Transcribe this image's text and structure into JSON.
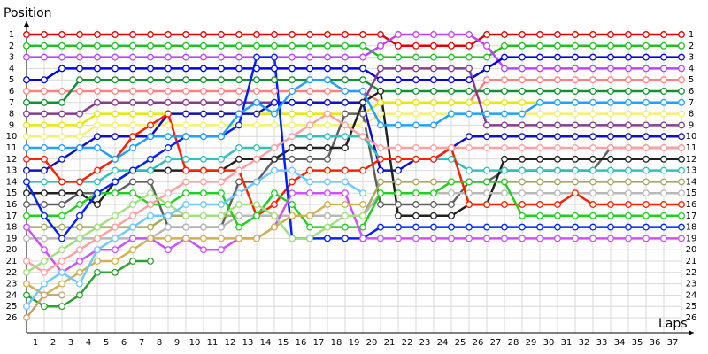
{
  "chart_data": {
    "type": "line",
    "y_title": "Position",
    "x_title": "Laps",
    "x": [
      0,
      1,
      2,
      3,
      4,
      5,
      6,
      7,
      8,
      9,
      10,
      11,
      12,
      13,
      14,
      15,
      16,
      17,
      18,
      19,
      20,
      21,
      22,
      23,
      24,
      25,
      26,
      27,
      28,
      29,
      30,
      31,
      32,
      33,
      34,
      35,
      36,
      37
    ],
    "xlim": [
      0,
      37
    ],
    "xticks": [
      1,
      2,
      3,
      4,
      5,
      6,
      7,
      8,
      9,
      10,
      11,
      12,
      13,
      14,
      15,
      16,
      17,
      18,
      19,
      20,
      21,
      22,
      23,
      24,
      25,
      26,
      27,
      28,
      29,
      30,
      31,
      32,
      33,
      34,
      35,
      36,
      37
    ],
    "ylim": [
      26,
      1
    ],
    "yticks": [
      1,
      2,
      3,
      4,
      5,
      6,
      7,
      8,
      9,
      10,
      11,
      12,
      13,
      14,
      15,
      16,
      17,
      18,
      19,
      20,
      21,
      22,
      23,
      24,
      25,
      26
    ],
    "grid": true,
    "series": [
      {
        "color": "#e00000",
        "values": [
          1,
          1,
          1,
          1,
          1,
          1,
          1,
          1,
          1,
          1,
          1,
          1,
          1,
          1,
          1,
          1,
          1,
          1,
          1,
          1,
          1,
          2,
          2,
          2,
          2,
          2,
          1,
          1,
          1,
          1,
          1,
          1,
          1,
          1,
          1,
          1,
          1,
          1
        ]
      },
      {
        "color": "#20c020",
        "values": [
          2,
          2,
          2,
          2,
          2,
          2,
          2,
          2,
          2,
          2,
          2,
          2,
          2,
          2,
          2,
          2,
          2,
          2,
          2,
          2,
          3,
          3,
          3,
          3,
          3,
          3,
          3,
          2,
          2,
          2,
          2,
          2,
          2,
          2,
          2,
          2,
          2,
          2
        ]
      },
      {
        "color": "#c040ff",
        "values": [
          3,
          3,
          3,
          3,
          3,
          3,
          3,
          3,
          3,
          3,
          3,
          3,
          3,
          3,
          3,
          3,
          3,
          3,
          3,
          3,
          2,
          1,
          1,
          1,
          1,
          1,
          2,
          4,
          4,
          4,
          4,
          4,
          4,
          4,
          4,
          4,
          4,
          4
        ]
      },
      {
        "color": "#0000e0",
        "values": [
          5,
          5,
          4,
          4,
          4,
          4,
          4,
          4,
          4,
          4,
          4,
          4,
          4,
          4,
          4,
          4,
          4,
          4,
          4,
          4,
          5,
          5,
          5,
          5,
          5,
          5,
          4,
          3,
          3,
          3,
          3,
          3,
          3,
          3,
          3,
          3,
          3,
          3
        ]
      },
      {
        "color": "#ff8080",
        "values": [
          6,
          6,
          6,
          6,
          6,
          6,
          6,
          6,
          6,
          6,
          6,
          6,
          6,
          6,
          6,
          6,
          6,
          6,
          6,
          6,
          7,
          7,
          7,
          7,
          7,
          7,
          5,
          5,
          5,
          5,
          5,
          5,
          5,
          5,
          5,
          5,
          5,
          5
        ]
      },
      {
        "color": "#109030",
        "values": [
          7,
          7,
          7,
          5,
          5,
          5,
          5,
          5,
          5,
          5,
          5,
          5,
          5,
          5,
          5,
          5,
          5,
          5,
          5,
          5,
          6,
          6,
          6,
          6,
          6,
          6,
          6,
          6,
          6,
          6,
          6,
          6,
          6,
          6,
          6,
          6,
          6,
          6
        ]
      },
      {
        "color": "#e8e800",
        "values": [
          9,
          9,
          9,
          9,
          8,
          8,
          8,
          8,
          8,
          8,
          8,
          8,
          8,
          8,
          8,
          8,
          8,
          8,
          8,
          8,
          7,
          7,
          7,
          7,
          7,
          7,
          7,
          7,
          7,
          7,
          7,
          7,
          7,
          7,
          7,
          7,
          7,
          7
        ]
      },
      {
        "color": "#f4f070",
        "values": [
          10,
          10,
          10,
          10,
          9,
          9,
          9,
          9,
          9,
          9,
          9,
          9,
          9,
          9,
          9,
          9,
          9,
          9,
          9,
          9,
          8,
          8,
          8,
          8,
          8,
          8,
          8,
          8,
          8,
          8,
          8,
          8,
          8,
          8,
          8,
          8,
          8,
          8
        ]
      },
      {
        "color": "#8a3a8a",
        "values": [
          8,
          8,
          8,
          8,
          7,
          7,
          7,
          7,
          7,
          7,
          7,
          7,
          7,
          7,
          7,
          7,
          7,
          7,
          7,
          7,
          4,
          4,
          4,
          4,
          4,
          4,
          9,
          9,
          9,
          9,
          9,
          9,
          9,
          9,
          9,
          9,
          9,
          9
        ]
      },
      {
        "color": "#1010c0",
        "values": [
          13,
          13,
          12,
          11,
          10,
          10,
          10,
          10,
          8,
          8,
          8,
          8,
          8,
          8,
          7,
          7,
          7,
          7,
          7,
          7,
          13,
          13,
          12,
          12,
          11,
          10,
          10,
          10,
          10,
          10,
          10,
          10,
          10,
          10,
          10,
          10,
          10,
          10
        ]
      },
      {
        "color": "#606060",
        "values": [
          16,
          16,
          16,
          15,
          15,
          15,
          14,
          14,
          18,
          18,
          18,
          18,
          14,
          14,
          12,
          12,
          12,
          12,
          8,
          8,
          16,
          16,
          16,
          16,
          16,
          14,
          14,
          13,
          13,
          13,
          13,
          13,
          13,
          11,
          11,
          11,
          11,
          11
        ]
      },
      {
        "color": "#202020",
        "values": [
          15,
          15,
          15,
          15,
          16,
          14,
          13,
          13,
          13,
          13,
          13,
          13,
          12,
          12,
          12,
          11,
          11,
          11,
          11,
          7,
          6,
          17,
          17,
          17,
          17,
          16,
          16,
          12,
          12,
          12,
          12,
          12,
          12,
          12,
          12,
          12,
          12,
          12
        ]
      },
      {
        "color": "#30c0c0",
        "values": [
          14,
          14,
          14,
          14,
          14,
          13,
          13,
          13,
          12,
          12,
          12,
          12,
          11,
          11,
          11,
          10,
          10,
          10,
          10,
          10,
          12,
          12,
          12,
          12,
          12,
          13,
          13,
          13,
          13,
          13,
          13,
          13,
          13,
          13,
          13,
          13,
          13,
          13
        ]
      },
      {
        "color": "#a8a860",
        "values": [
          18,
          18,
          18,
          18,
          18,
          18,
          18,
          18,
          17,
          17,
          17,
          17,
          17,
          17,
          17,
          17,
          17,
          17,
          17,
          17,
          14,
          14,
          14,
          14,
          14,
          14,
          14,
          14,
          14,
          14,
          14,
          14,
          14,
          14,
          14,
          14,
          14,
          14
        ]
      },
      {
        "color": "#b8b8b8",
        "values": [
          19,
          19,
          19,
          19,
          19,
          19,
          19,
          19,
          18,
          18,
          18,
          18,
          17,
          17,
          17,
          17,
          17,
          17,
          17,
          17,
          15,
          15,
          15,
          15,
          15,
          15,
          15,
          15,
          15,
          15,
          15,
          15,
          15,
          15,
          15,
          15,
          15,
          15
        ]
      },
      {
        "color": "#ff2000",
        "values": [
          12,
          12,
          14,
          14,
          13,
          12,
          10,
          9,
          8,
          13,
          13,
          13,
          13,
          17,
          16,
          14,
          13,
          13,
          13,
          13,
          12,
          12,
          12,
          12,
          11,
          16,
          16,
          16,
          16,
          16,
          16,
          15,
          16,
          16,
          16,
          16,
          16,
          16
        ]
      },
      {
        "color": "#20d020",
        "values": [
          17,
          17,
          17,
          16,
          15,
          15,
          15,
          16,
          16,
          15,
          15,
          15,
          18,
          17,
          15,
          16,
          18,
          18,
          18,
          18,
          15,
          15,
          15,
          15,
          14,
          14,
          14,
          14,
          17,
          17,
          17,
          17,
          17,
          17,
          17,
          17,
          17,
          17
        ]
      },
      {
        "color": "#0020ff",
        "values": [
          14,
          17,
          19,
          17,
          15,
          14,
          13,
          12,
          11,
          10,
          10,
          10,
          9,
          3,
          3,
          19,
          19,
          19,
          19,
          19,
          18,
          18,
          18,
          18,
          18,
          18,
          18,
          18,
          18,
          18,
          18,
          18,
          18,
          18,
          18,
          18,
          18,
          18
        ]
      },
      {
        "color": "#d050ff",
        "values": [
          18,
          20,
          22,
          21,
          20,
          20,
          19,
          19,
          20,
          19,
          20,
          20,
          19,
          19,
          18,
          15,
          15,
          15,
          15,
          19,
          19,
          19,
          19,
          19,
          19,
          19,
          19,
          19,
          19,
          19,
          19,
          19,
          19,
          19,
          19,
          19,
          19,
          19
        ]
      },
      {
        "color": "#20a0ff",
        "values": [
          11,
          11,
          11,
          11,
          11,
          12,
          11,
          10,
          10,
          10,
          10,
          10,
          8,
          7,
          8,
          6,
          5,
          5,
          6,
          6,
          9,
          9,
          9,
          9,
          8,
          8,
          8,
          8,
          8,
          7,
          7,
          7,
          7,
          7,
          7,
          7,
          7,
          7
        ]
      },
      {
        "color": "#ffa0a0",
        "values": [
          21,
          22,
          21,
          20,
          19,
          18,
          17,
          16,
          15,
          14,
          14,
          14,
          13,
          12,
          11,
          10,
          9,
          8,
          9,
          10,
          11,
          11,
          11,
          11,
          11,
          11,
          11,
          11,
          11,
          11,
          11,
          11,
          11,
          11,
          11,
          11,
          11,
          11
        ]
      },
      {
        "color": "#d0b050",
        "values": [
          23,
          24,
          23,
          22,
          21,
          21,
          20,
          19,
          19,
          19,
          19,
          19,
          19,
          19,
          18,
          17,
          17,
          16,
          16,
          16,
          null,
          null,
          null,
          null,
          null,
          null,
          null,
          null,
          null,
          null,
          null,
          null,
          null,
          null,
          null,
          null,
          null,
          null
        ]
      },
      {
        "color": "#30a030",
        "values": [
          24,
          25,
          25,
          24,
          22,
          22,
          21,
          21,
          null,
          null,
          null,
          null,
          null,
          null,
          null,
          null,
          null,
          null,
          null,
          null,
          null,
          null,
          null,
          null,
          null,
          null,
          null,
          null,
          null,
          null,
          null,
          null,
          null,
          null,
          null,
          null,
          null,
          null
        ]
      },
      {
        "color": "#a0e080",
        "values": [
          22,
          21,
          20,
          19,
          18,
          17,
          16,
          15,
          16,
          17,
          17,
          17,
          16,
          16,
          17,
          19,
          19,
          18,
          17,
          17,
          null,
          null,
          null,
          null,
          null,
          null,
          null,
          null,
          null,
          null,
          null,
          null,
          null,
          null,
          null,
          null,
          null,
          null
        ]
      },
      {
        "color": "#70c8ff",
        "values": [
          25,
          23,
          22,
          23,
          20,
          19,
          18,
          17,
          17,
          16,
          16,
          16,
          15,
          14,
          13,
          13,
          14,
          14,
          14,
          15,
          null,
          null,
          null,
          null,
          null,
          null,
          null,
          null,
          null,
          null,
          null,
          null,
          null,
          null,
          null,
          null,
          null,
          null
        ]
      },
      {
        "color": "#c8a070",
        "values": [
          26,
          24,
          24,
          null,
          null,
          null,
          null,
          null,
          null,
          null,
          null,
          null,
          null,
          null,
          null,
          null,
          null,
          null,
          null,
          null,
          null,
          null,
          null,
          null,
          null,
          null,
          null,
          null,
          null,
          null,
          null,
          null,
          null,
          null,
          null,
          null,
          null,
          null
        ]
      }
    ]
  }
}
